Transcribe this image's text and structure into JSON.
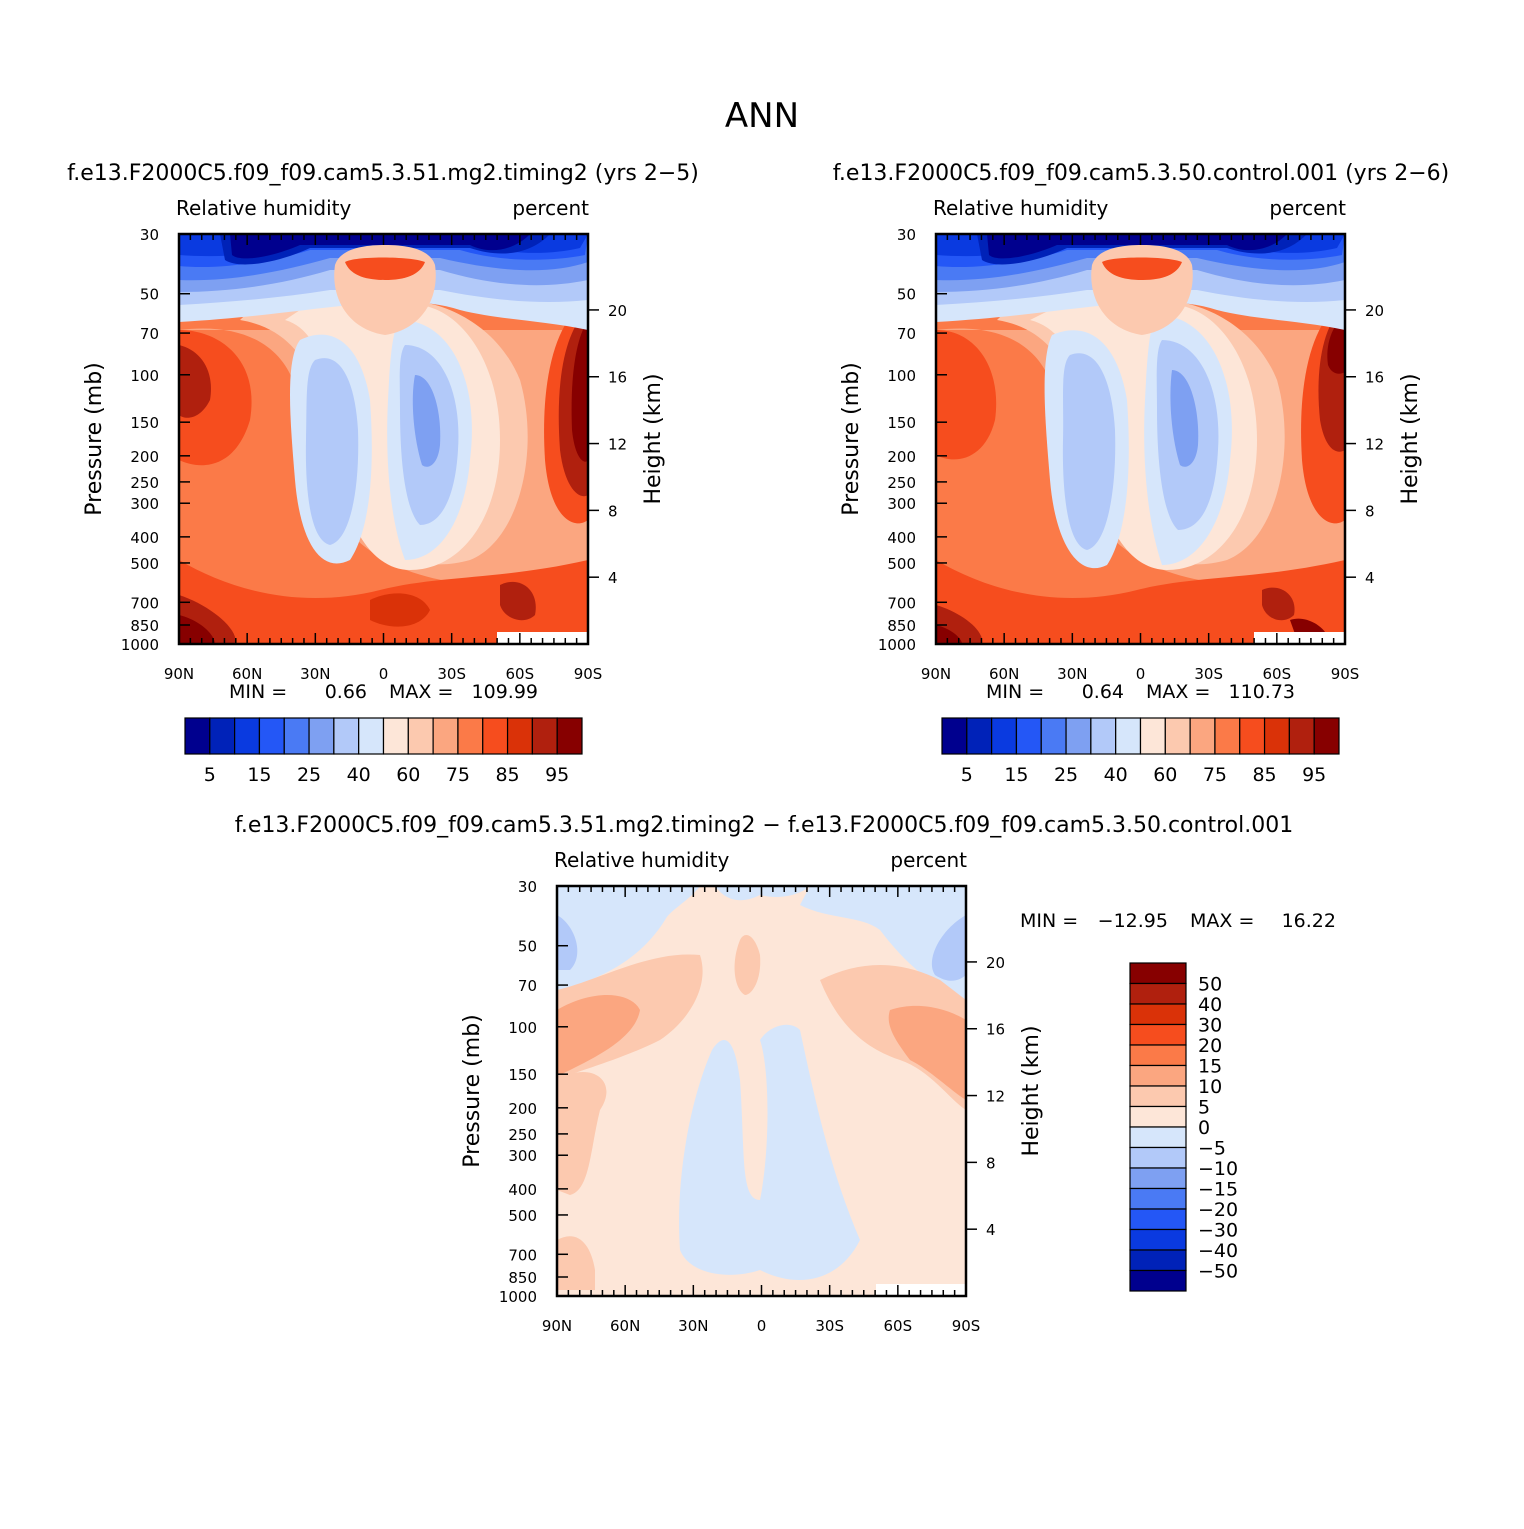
{
  "chart_data": [
    {
      "id": "case1",
      "type": "heatmap",
      "subtype": "filled-contour zonal-mean cross-section",
      "title": "f.e13.F2000C5.f09_f09.cam5.3.51.mg2.timing2 (yrs 2−5)",
      "variable": "Relative humidity",
      "units": "percent",
      "xlabel": "",
      "ylabel": "Pressure (mb)",
      "ylabel_right": "Height (km)",
      "x_ticks": [
        "90N",
        "60N",
        "30N",
        "0",
        "30S",
        "60S",
        "90S"
      ],
      "y_ticks": [
        30,
        50,
        70,
        100,
        150,
        200,
        250,
        300,
        400,
        500,
        700,
        850,
        1000
      ],
      "y_ticks_right": [
        20,
        16,
        12,
        8,
        4
      ],
      "xlim": [
        90,
        -90
      ],
      "ylim": [
        1000,
        30
      ],
      "yscale": "log",
      "min_label": "MIN =",
      "min_value": "0.66",
      "max_label": "MAX =",
      "max_value": "109.99",
      "colorbar": {
        "orientation": "horizontal",
        "levels": [
          "5",
          "10",
          "15",
          "20",
          "25",
          "30",
          "40",
          "50",
          "60",
          "70",
          "75",
          "80",
          "85",
          "90",
          "95"
        ],
        "labels": [
          "5",
          "15",
          "25",
          "40",
          "60",
          "75",
          "85",
          "95"
        ],
        "colors": [
          "#00008e",
          "#0022b8",
          "#0a3ae0",
          "#2457f6",
          "#4a7af4",
          "#7ea0f2",
          "#b2c9f9",
          "#d6e6fb",
          "#fde6d8",
          "#fcc9af",
          "#fba680",
          "#fb7a48",
          "#f64d1e",
          "#da3208",
          "#b0200e",
          "#870000"
        ]
      }
    },
    {
      "id": "case2",
      "type": "heatmap",
      "subtype": "filled-contour zonal-mean cross-section",
      "title": "f.e13.F2000C5.f09_f09.cam5.3.50.control.001 (yrs 2−6)",
      "variable": "Relative humidity",
      "units": "percent",
      "xlabel": "",
      "ylabel": "Pressure (mb)",
      "ylabel_right": "Height (km)",
      "x_ticks": [
        "90N",
        "60N",
        "30N",
        "0",
        "30S",
        "60S",
        "90S"
      ],
      "y_ticks": [
        30,
        50,
        70,
        100,
        150,
        200,
        250,
        300,
        400,
        500,
        700,
        850,
        1000
      ],
      "y_ticks_right": [
        20,
        16,
        12,
        8,
        4
      ],
      "xlim": [
        90,
        -90
      ],
      "ylim": [
        1000,
        30
      ],
      "yscale": "log",
      "min_label": "MIN =",
      "min_value": "0.64",
      "max_label": "MAX =",
      "max_value": "110.73",
      "colorbar": {
        "orientation": "horizontal",
        "levels": [
          "5",
          "10",
          "15",
          "20",
          "25",
          "30",
          "40",
          "50",
          "60",
          "70",
          "75",
          "80",
          "85",
          "90",
          "95"
        ],
        "labels": [
          "5",
          "15",
          "25",
          "40",
          "60",
          "75",
          "85",
          "95"
        ],
        "colors": [
          "#00008e",
          "#0022b8",
          "#0a3ae0",
          "#2457f6",
          "#4a7af4",
          "#7ea0f2",
          "#b2c9f9",
          "#d6e6fb",
          "#fde6d8",
          "#fcc9af",
          "#fba680",
          "#fb7a48",
          "#f64d1e",
          "#da3208",
          "#b0200e",
          "#870000"
        ]
      }
    },
    {
      "id": "diff",
      "type": "heatmap",
      "subtype": "filled-contour difference cross-section",
      "title": "f.e13.F2000C5.f09_f09.cam5.3.51.mg2.timing2 − f.e13.F2000C5.f09_f09.cam5.3.50.control.001",
      "variable": "Relative humidity",
      "units": "percent",
      "xlabel": "",
      "ylabel": "Pressure (mb)",
      "ylabel_right": "Height (km)",
      "x_ticks": [
        "90N",
        "60N",
        "30N",
        "0",
        "30S",
        "60S",
        "90S"
      ],
      "y_ticks": [
        30,
        50,
        70,
        100,
        150,
        200,
        250,
        300,
        400,
        500,
        700,
        850,
        1000
      ],
      "y_ticks_right": [
        20,
        16,
        12,
        8,
        4
      ],
      "xlim": [
        90,
        -90
      ],
      "ylim": [
        1000,
        30
      ],
      "yscale": "log",
      "min_label": "MIN =",
      "min_value": "−12.95",
      "max_label": "MAX =",
      "max_value": "16.22",
      "colorbar": {
        "orientation": "vertical",
        "labels": [
          "50",
          "40",
          "30",
          "20",
          "15",
          "10",
          "5",
          "0",
          "−5",
          "−10",
          "−15",
          "−20",
          "−30",
          "−40",
          "−50"
        ],
        "colors": [
          "#870000",
          "#b0200e",
          "#da3208",
          "#f64d1e",
          "#fb7a48",
          "#fba680",
          "#fcc9af",
          "#fde6d8",
          "#d6e6fb",
          "#b2c9f9",
          "#7ea0f2",
          "#4a7af4",
          "#2457f6",
          "#0a3ae0",
          "#0022b8",
          "#00008e"
        ]
      }
    }
  ],
  "figure": {
    "season": "ANN"
  }
}
